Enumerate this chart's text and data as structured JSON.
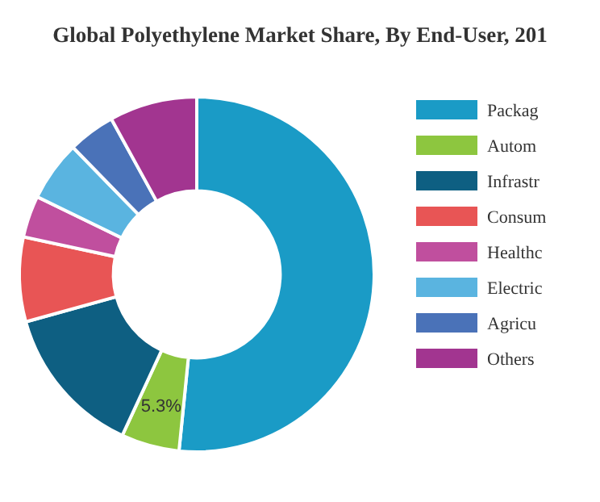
{
  "chart_data": {
    "type": "donut",
    "title": "Global Polyethylene Market Share, By End-User, 201",
    "categories": [
      "Packag",
      "Autom",
      "Infrastr",
      "Consum",
      "Healthc",
      "Electric",
      "Agricu",
      "Others"
    ],
    "values": [
      51.6,
      5.3,
      13.8,
      7.7,
      3.8,
      5.5,
      4.3,
      8.0
    ],
    "colors": [
      "#1a9bc6",
      "#8dc63f",
      "#0e5f82",
      "#e85555",
      "#c04f9e",
      "#5ab4e0",
      "#4a72b8",
      "#a23590"
    ],
    "value_labels": [
      null,
      "5.3%",
      null,
      null,
      null,
      null,
      null,
      null
    ],
    "legend": "right"
  }
}
